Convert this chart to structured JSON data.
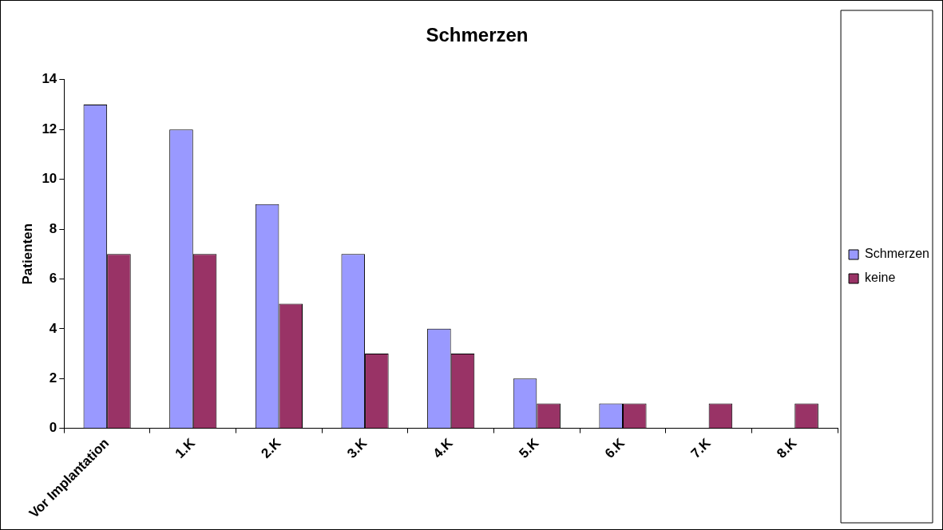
{
  "chart_data": {
    "type": "bar",
    "title": "Schmerzen",
    "ylabel": "Patienten",
    "categories": [
      "Vor Implantation",
      "1.K",
      "2.K",
      "3.K",
      "4.K",
      "5.K",
      "6.K",
      "7.K",
      "8.K"
    ],
    "series": [
      {
        "name": "Schmerzen",
        "color": "#9999ff",
        "values": [
          13,
          12,
          9,
          7,
          4,
          2,
          1,
          0,
          0
        ]
      },
      {
        "name": "keine",
        "color": "#993366",
        "values": [
          7,
          7,
          5,
          3,
          3,
          1,
          1,
          1,
          1
        ]
      }
    ],
    "ylim": [
      0,
      14
    ],
    "yticks": [
      0,
      2,
      4,
      6,
      8,
      10,
      12,
      14
    ],
    "grid": false,
    "legend": "right"
  }
}
